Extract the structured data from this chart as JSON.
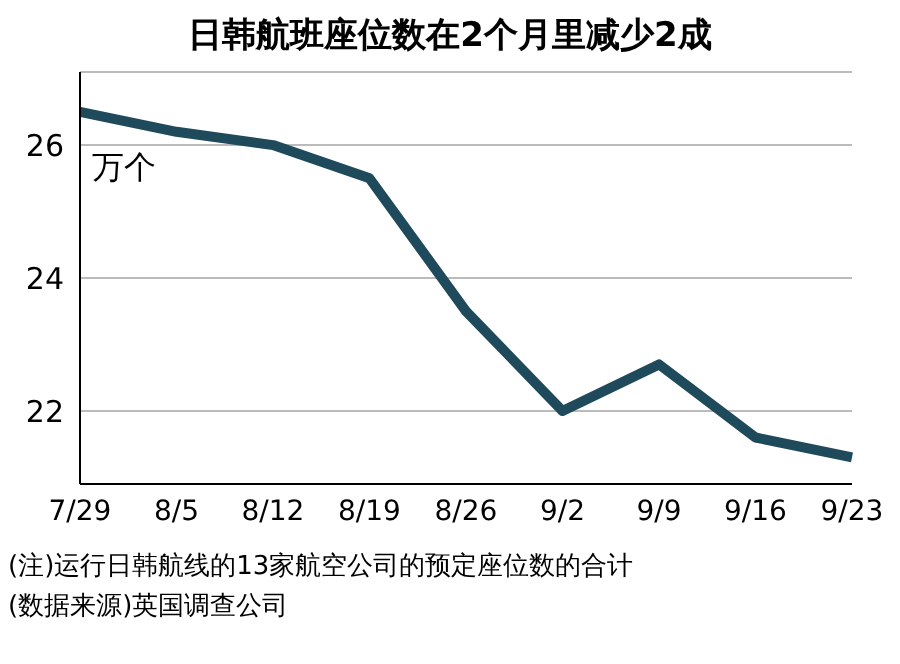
{
  "chart_data": {
    "type": "line",
    "title": "日韩航班座位数在2个月里减少2成",
    "ylabel": "万个",
    "categories": [
      "7/29",
      "8/5",
      "8/12",
      "8/19",
      "8/26",
      "9/2",
      "9/9",
      "9/16",
      "9/23"
    ],
    "series": [
      {
        "color": "#1f4a5c",
        "values": [
          26.5,
          26.2,
          26.0,
          25.5,
          23.5,
          22.0,
          22.7,
          21.6,
          21.3
        ]
      }
    ],
    "ylim": [
      20.9,
      27.1
    ],
    "yticks": [
      22,
      24,
      26
    ],
    "grid": "y",
    "marker": "none",
    "line_style": "solid",
    "annotations": [
      "(注)运行日韩航线的13家航空公司的预定座位数的合计",
      "(数据来源)英国调查公司"
    ]
  }
}
